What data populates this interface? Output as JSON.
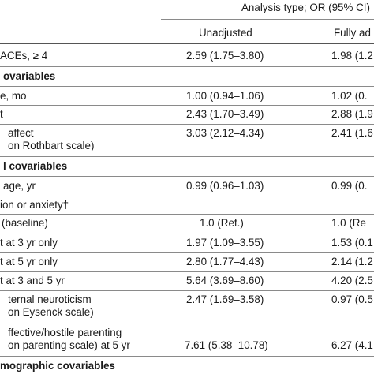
{
  "header": {
    "group_label": "Analysis type; OR (95% CI)",
    "col_unadjusted": "Unadjusted",
    "col_fully_adjusted": "Fully ad"
  },
  "rows": [
    {
      "label": "ACEs, ≥ 4",
      "unadjusted": "2.59 (1.75–3.80)",
      "adjusted": "1.98 (1.2"
    },
    {
      "label": "ovariables",
      "unadjusted": "",
      "adjusted": "",
      "bold": true
    },
    {
      "label": "e, mo",
      "unadjusted": "1.00 (0.94–1.06)",
      "adjusted": "1.02 (0."
    },
    {
      "label": "t",
      "unadjusted": "2.43 (1.70–3.49)",
      "adjusted": "2.88 (1.9"
    },
    {
      "label": "affect",
      "label2": "on Rothbart scale)",
      "unadjusted": "3.03 (2.12–4.34)",
      "adjusted": "2.41 (1.6"
    },
    {
      "label": "l covariables",
      "unadjusted": "",
      "adjusted": "",
      "bold": true
    },
    {
      "label": " age, yr",
      "unadjusted": "0.99 (0.96–1.03)",
      "adjusted": "0.99 (0."
    },
    {
      "label": "ion or anxiety†",
      "unadjusted": "",
      "adjusted": ""
    },
    {
      "label": "(baseline)",
      "unadjusted": "1.0 (Ref.)",
      "adjusted": "1.0 (Re"
    },
    {
      "label": "t at 3 yr only",
      "unadjusted": "1.97 (1.09–3.55)",
      "adjusted": "1.53 (0.1"
    },
    {
      "label": "t at 5 yr only",
      "unadjusted": "2.80 (1.77–4.43)",
      "adjusted": "2.14 (1.2"
    },
    {
      "label": "t at 3 and 5 yr",
      "unadjusted": "5.64 (3.69–8.60)",
      "adjusted": "4.20 (2.5"
    },
    {
      "label": "ternal neuroticism",
      "label2": "on Eysenck scale)",
      "unadjusted": "2.47 (1.69–3.58)",
      "adjusted": "0.97 (0.5"
    },
    {
      "label": "ffective/hostile parenting",
      "label2": "on parenting scale) at 5 yr",
      "unadjusted": "7.61 (5.38–10.78)",
      "adjusted": "6.27 (4.1"
    },
    {
      "label": "mographic covariables",
      "unadjusted": "",
      "adjusted": "",
      "bold": true
    }
  ]
}
